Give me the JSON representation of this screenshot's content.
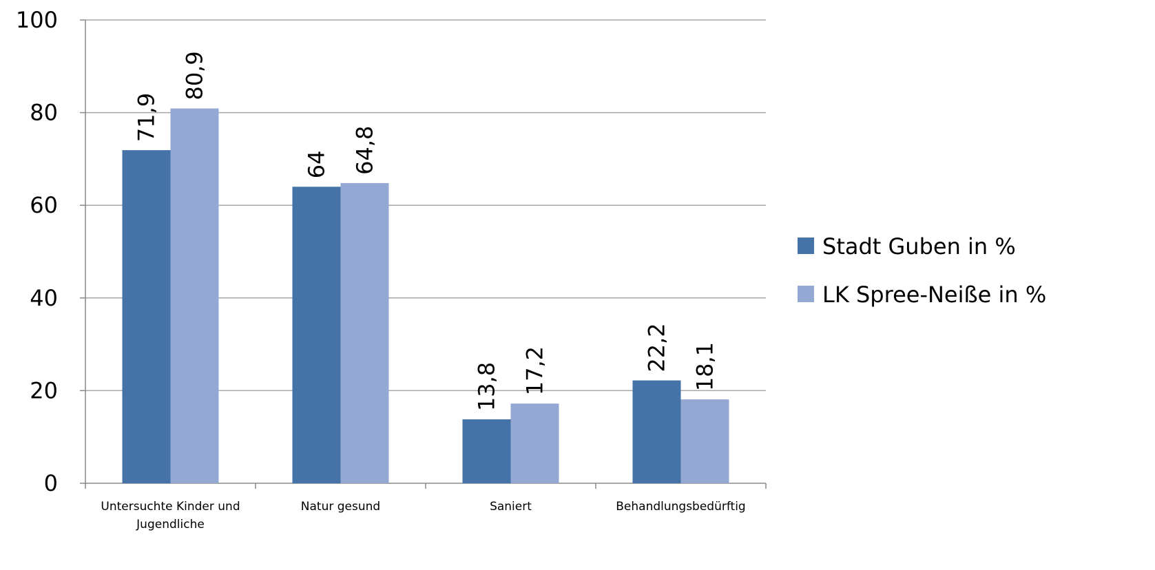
{
  "chart_data": {
    "type": "bar",
    "title": "",
    "xlabel": "",
    "ylabel": "",
    "categories": [
      [
        "Untersuchte Kinder und",
        "Jugendliche"
      ],
      [
        "Natur gesund"
      ],
      [
        "Saniert"
      ],
      [
        "Behandlungsbedürftig"
      ]
    ],
    "series": [
      {
        "name": "Stadt Guben in %",
        "color": "#4573A8",
        "values": [
          71.9,
          64,
          13.8,
          22.2
        ],
        "labels": [
          "71,9",
          "64",
          "13,8",
          "22,2"
        ]
      },
      {
        "name": "LK Spree-Neiße in %",
        "color": "#93A9D3",
        "values": [
          80.9,
          64.8,
          17.2,
          18.1
        ],
        "labels": [
          "80,9",
          "64,8",
          "17,2",
          "18,1"
        ]
      }
    ],
    "ylim": [
      0,
      100
    ],
    "yticks": [
      0,
      20,
      40,
      60,
      80,
      100
    ],
    "grid": true,
    "legend_position": "right"
  }
}
